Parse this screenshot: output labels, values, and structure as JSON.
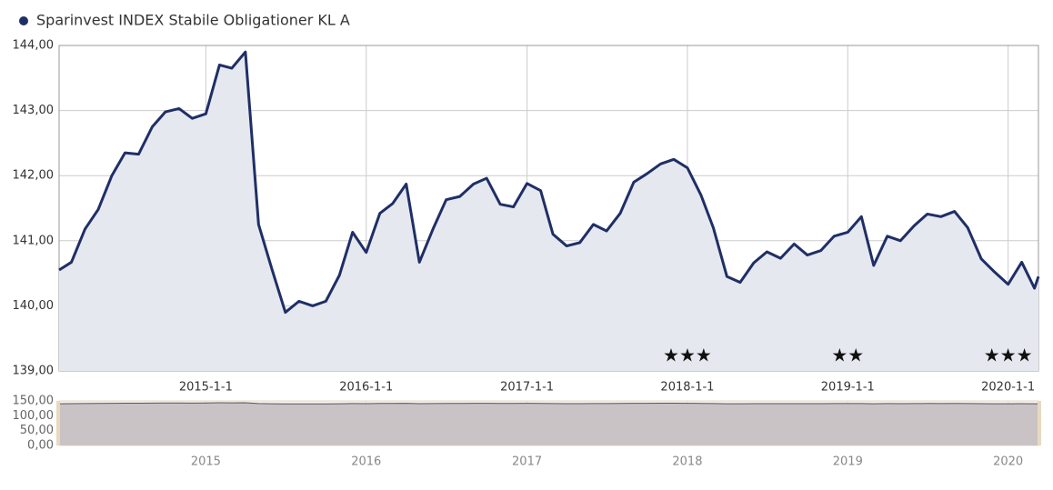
{
  "chart_data": {
    "type": "line",
    "title": "Sparinvest INDEX Stabile Obligationer KL A",
    "series": [
      {
        "name": "Sparinvest INDEX Stabile Obligationer KL A",
        "color": "#1f2f66",
        "fill": "#e6e8f0",
        "x": [
          "2014-2-1",
          "2014-3-1",
          "2014-4-1",
          "2014-5-1",
          "2014-6-1",
          "2014-7-1",
          "2014-8-1",
          "2014-9-1",
          "2014-10-1",
          "2014-11-1",
          "2014-12-1",
          "2015-1-1",
          "2015-2-1",
          "2015-3-1",
          "2015-4-1",
          "2015-5-1",
          "2015-6-1",
          "2015-7-1",
          "2015-8-1",
          "2015-9-1",
          "2015-10-1",
          "2015-11-1",
          "2015-12-1",
          "2016-1-1",
          "2016-2-1",
          "2016-3-1",
          "2016-4-1",
          "2016-5-1",
          "2016-6-1",
          "2016-7-1",
          "2016-8-1",
          "2016-9-1",
          "2016-10-1",
          "2016-11-1",
          "2016-12-1",
          "2017-1-1",
          "2017-2-1",
          "2017-3-1",
          "2017-4-1",
          "2017-5-1",
          "2017-6-1",
          "2017-7-1",
          "2017-8-1",
          "2017-9-1",
          "2017-10-1",
          "2017-11-1",
          "2017-12-1",
          "2018-1-1",
          "2018-2-1",
          "2018-3-1",
          "2018-4-1",
          "2018-5-1",
          "2018-6-1",
          "2018-7-1",
          "2018-8-1",
          "2018-9-1",
          "2018-10-1",
          "2018-11-1",
          "2018-12-1",
          "2019-1-1",
          "2019-2-1",
          "2019-3-1",
          "2019-4-1",
          "2019-5-1",
          "2019-6-1",
          "2019-7-1",
          "2019-8-1",
          "2019-9-1",
          "2019-10-1",
          "2019-11-1",
          "2019-12-1",
          "2020-1-1",
          "2020-2-1",
          "2020-3-1",
          "2020-3-10"
        ],
        "values": [
          140.55,
          140.67,
          141.18,
          141.48,
          142.0,
          142.35,
          142.33,
          142.75,
          142.98,
          143.03,
          142.88,
          142.95,
          143.7,
          143.65,
          143.9,
          141.25,
          140.55,
          139.9,
          140.07,
          140.0,
          140.07,
          140.47,
          141.13,
          140.82,
          141.42,
          141.57,
          141.87,
          140.67,
          141.18,
          141.63,
          141.68,
          141.87,
          141.96,
          141.56,
          141.52,
          141.88,
          141.77,
          141.1,
          140.92,
          140.97,
          141.25,
          141.15,
          141.42,
          141.9,
          142.03,
          142.18,
          142.25,
          142.12,
          141.7,
          141.2,
          140.45,
          140.36,
          140.66,
          140.83,
          140.73,
          140.95,
          140.78,
          140.85,
          141.07,
          141.13,
          141.37,
          140.62,
          141.07,
          141.0,
          141.23,
          141.41,
          141.37,
          141.45,
          141.2,
          140.72,
          140.52,
          140.33,
          140.67,
          140.27,
          140.45
        ]
      }
    ],
    "xlim": [
      "2014-2-1",
      "2020-3-10"
    ],
    "ylim": [
      139,
      144
    ],
    "yticks": [
      {
        "value": 139,
        "label": "139,00"
      },
      {
        "value": 140,
        "label": "140,00"
      },
      {
        "value": 141,
        "label": "141,00"
      },
      {
        "value": 142,
        "label": "142,00"
      },
      {
        "value": 143,
        "label": "143,00"
      },
      {
        "value": 144,
        "label": "144,00"
      }
    ],
    "xticks": [
      "2015-1-1",
      "2016-1-1",
      "2017-1-1",
      "2018-1-1",
      "2019-1-1",
      "2020-1-1"
    ],
    "grid": true,
    "annotations": [
      {
        "x": "2018-1-1",
        "text": "★★★"
      },
      {
        "x": "2019-1-1",
        "text": "★★"
      },
      {
        "x": "2020-1-1",
        "text": "★★★"
      }
    ],
    "navigator": {
      "ylim": [
        0,
        150
      ],
      "yticks": [
        {
          "value": 0,
          "label": "0,00"
        },
        {
          "value": 50,
          "label": "50,00"
        },
        {
          "value": 100,
          "label": "100,00"
        },
        {
          "value": 150,
          "label": "150,00"
        }
      ],
      "xticks": [
        {
          "value": "2015-1-1",
          "label": "2015"
        },
        {
          "value": "2016-1-1",
          "label": "2016"
        },
        {
          "value": "2017-1-1",
          "label": "2017"
        },
        {
          "value": "2018-1-1",
          "label": "2018"
        },
        {
          "value": "2019-1-1",
          "label": "2019"
        },
        {
          "value": "2020-1-1",
          "label": "2020"
        }
      ],
      "color": "#555",
      "fill": "#c9c3c6",
      "border": "#e8d9bf"
    }
  }
}
